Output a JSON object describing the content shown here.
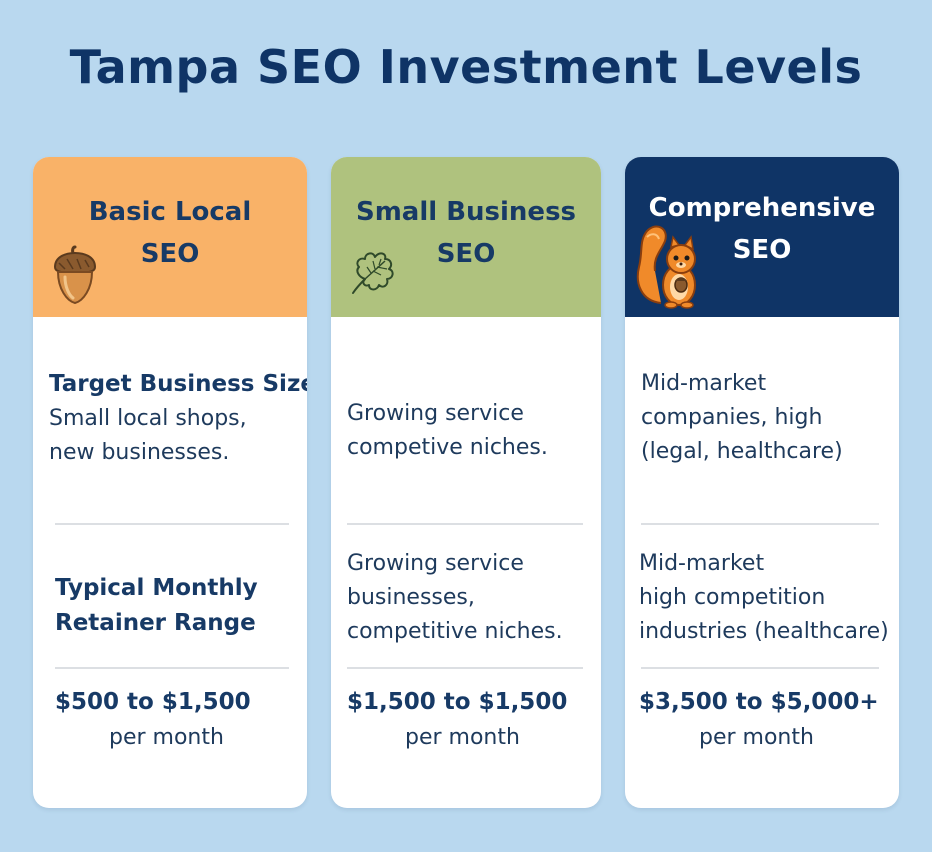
{
  "title": "Tampa SEO Investment Levels",
  "colors": {
    "background": "#b9d8ef",
    "title": "#0f3466",
    "basic_header": "#f9b268",
    "small_header": "#afc27e",
    "comprehensive_header": "#0f3466"
  },
  "tiers": [
    {
      "header_line1": "Basic Local",
      "header_line2": "SEO",
      "icon": "acorn-icon",
      "label_size": "Target Business Size",
      "business_size": [
        "Small local shops,",
        "new businesses."
      ],
      "label_retainer_line1": "Typical Monthly",
      "label_retainer_line2": "Retainer Range",
      "price": "$500 to $1,500",
      "per": "per month"
    },
    {
      "header_line1": "Small Business",
      "header_line2": "SEO",
      "icon": "oak-leaf-icon",
      "business_size": [
        "Growing service",
        "competive niches."
      ],
      "retainer_desc": [
        "Growing service",
        "businesses,",
        "competitive niches."
      ],
      "price": "$1,500 to $1,500",
      "per": "per month"
    },
    {
      "header_line1": "Comprehensive",
      "header_line2": "SEO",
      "icon": "squirrel-icon",
      "business_size": [
        "Mid-market",
        "companies, high",
        "(legal, healthcare)"
      ],
      "retainer_desc": [
        "Mid-market",
        "high competition",
        "industries (healthcare)"
      ],
      "price": "$3,500 to $5,000+",
      "per": "per month"
    }
  ]
}
